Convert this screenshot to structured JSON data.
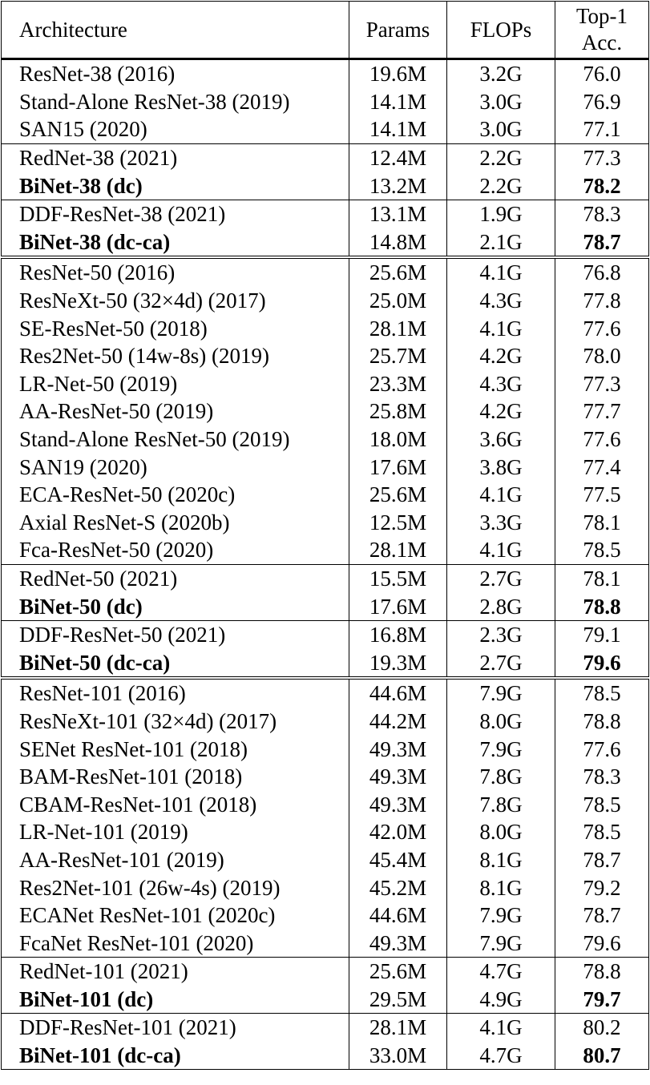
{
  "table": {
    "header": {
      "architecture": "Architecture",
      "params": "Params",
      "flops": "FLOPs",
      "accuracy": [
        "Top-1",
        "Acc."
      ]
    },
    "groups": [
      {
        "sections": [
          {
            "rows": [
              [
                "ResNet-38 (2016)",
                "19.6M",
                "3.2G",
                "76.0"
              ],
              [
                "Stand-Alone ResNet-38 (2019)",
                "14.1M",
                "3.0G",
                "76.9"
              ],
              [
                "SAN15 (2020)",
                "14.1M",
                "3.0G",
                "77.1"
              ]
            ]
          },
          {
            "rows": [
              [
                "RedNet-38 (2021)",
                "12.4M",
                "2.2G",
                "77.3"
              ],
              [
                "BiNet-38 (dc)",
                "13.2M",
                "2.2G",
                "78.2"
              ]
            ]
          },
          {
            "rows": [
              [
                "DDF-ResNet-38 (2021)",
                "13.1M",
                "1.9G",
                "78.3"
              ],
              [
                "BiNet-38 (dc-ca)",
                "14.8M",
                "2.1G",
                "78.7"
              ]
            ]
          }
        ]
      },
      {
        "sections": [
          {
            "rows": [
              [
                "ResNet-50 (2016)",
                "25.6M",
                "4.1G",
                "76.8"
              ],
              [
                "ResNeXt-50 (32×4d) (2017)",
                "25.0M",
                "4.3G",
                "77.8"
              ],
              [
                "SE-ResNet-50 (2018)",
                "28.1M",
                "4.1G",
                "77.6"
              ],
              [
                "Res2Net-50 (14w-8s) (2019)",
                "25.7M",
                "4.2G",
                "78.0"
              ],
              [
                "LR-Net-50 (2019)",
                "23.3M",
                "4.3G",
                "77.3"
              ],
              [
                "AA-ResNet-50 (2019)",
                "25.8M",
                "4.2G",
                "77.7"
              ],
              [
                "Stand-Alone ResNet-50 (2019)",
                "18.0M",
                "3.6G",
                "77.6"
              ],
              [
                "SAN19 (2020)",
                "17.6M",
                "3.8G",
                "77.4"
              ],
              [
                "ECA-ResNet-50 (2020c)",
                "25.6M",
                "4.1G",
                "77.5"
              ],
              [
                "Axial ResNet-S (2020b)",
                "12.5M",
                "3.3G",
                "78.1"
              ],
              [
                "Fca-ResNet-50 (2020)",
                "28.1M",
                "4.1G",
                "78.5"
              ]
            ]
          },
          {
            "rows": [
              [
                "RedNet-50 (2021)",
                "15.5M",
                "2.7G",
                "78.1"
              ],
              [
                "BiNet-50 (dc)",
                "17.6M",
                "2.8G",
                "78.8"
              ]
            ]
          },
          {
            "rows": [
              [
                "DDF-ResNet-50 (2021)",
                "16.8M",
                "2.3G",
                "79.1"
              ],
              [
                "BiNet-50 (dc-ca)",
                "19.3M",
                "2.7G",
                "79.6"
              ]
            ]
          }
        ]
      },
      {
        "sections": [
          {
            "rows": [
              [
                "ResNet-101 (2016)",
                "44.6M",
                "7.9G",
                "78.5"
              ],
              [
                "ResNeXt-101 (32×4d) (2017)",
                "44.2M",
                "8.0G",
                "78.8"
              ],
              [
                "SENet ResNet-101 (2018)",
                "49.3M",
                "7.9G",
                "77.6"
              ],
              [
                "BAM-ResNet-101 (2018)",
                "49.3M",
                "7.8G",
                "78.3"
              ],
              [
                "CBAM-ResNet-101 (2018)",
                "49.3M",
                "7.8G",
                "78.5"
              ],
              [
                "LR-Net-101 (2019)",
                "42.0M",
                "8.0G",
                "78.5"
              ],
              [
                "AA-ResNet-101 (2019)",
                "45.4M",
                "8.1G",
                "78.7"
              ],
              [
                "Res2Net-101 (26w-4s) (2019)",
                "45.2M",
                "8.1G",
                "79.2"
              ],
              [
                "ECANet ResNet-101 (2020c)",
                "44.6M",
                "7.9G",
                "78.7"
              ],
              [
                "FcaNet ResNet-101 (2020)",
                "49.3M",
                "7.9G",
                "79.6"
              ]
            ]
          },
          {
            "rows": [
              [
                "RedNet-101 (2021)",
                "25.6M",
                "4.7G",
                "78.8"
              ],
              [
                "BiNet-101 (dc)",
                "29.5M",
                "4.9G",
                "79.7"
              ]
            ]
          },
          {
            "rows": [
              [
                "DDF-ResNet-101 (2021)",
                "28.1M",
                "4.1G",
                "80.2"
              ],
              [
                "BiNet-101 (dc-ca)",
                "33.0M",
                "4.7G",
                "80.7"
              ]
            ]
          }
        ]
      }
    ]
  }
}
